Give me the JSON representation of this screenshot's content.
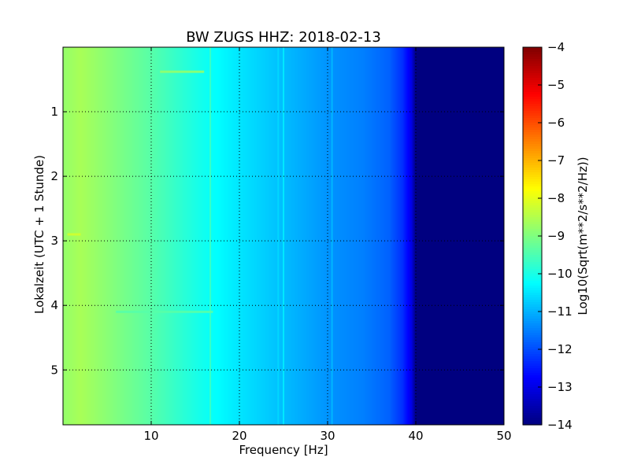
{
  "chart_data": {
    "type": "heatmap",
    "title": "BW ZUGS HHZ: 2018-02-13",
    "xlabel": "Frequency [Hz]",
    "ylabel": "Lokalzeit (UTC + 1 Stunde)",
    "xlim": [
      0,
      50
    ],
    "ylim": [
      5.85,
      0.0
    ],
    "x_ticks": [
      10,
      20,
      30,
      40,
      50
    ],
    "y_ticks": [
      1,
      2,
      3,
      4,
      5
    ],
    "grid": true,
    "colorscale": "jet",
    "colorbar": {
      "label": "Log10(Sqrt(m**2/s**2/Hz))",
      "range": [
        -14,
        -4
      ],
      "ticks": [
        -4,
        -5,
        -6,
        -7,
        -8,
        -9,
        -10,
        -11,
        -12,
        -13,
        -14
      ]
    },
    "profile_freq_hz": [
      0,
      2,
      5,
      10,
      15,
      20,
      25,
      30,
      34,
      37,
      38.5,
      39.5,
      40,
      50
    ],
    "profile_log10_amplitude": [
      -8.8,
      -8.6,
      -8.9,
      -9.4,
      -10.0,
      -10.5,
      -10.9,
      -11.3,
      -11.5,
      -11.8,
      -12.3,
      -13.0,
      -14.0,
      -14.0
    ],
    "features": [
      {
        "type": "vertical_line",
        "freq_hz": 25.0,
        "log10_amplitude": -10.4
      },
      {
        "type": "vertical_line",
        "freq_hz": 24.4,
        "log10_amplitude": -10.6
      },
      {
        "type": "vertical_line",
        "freq_hz": 16.7,
        "log10_amplitude": -9.6
      },
      {
        "type": "vertical_line",
        "freq_hz": 30.5,
        "log10_amplitude": -10.9
      },
      {
        "type": "horizontal_band",
        "time_h": 2.9,
        "freq_range_hz": [
          0.5,
          2.0
        ],
        "log10_amplitude": -8.2
      },
      {
        "type": "horizontal_band",
        "time_h": 0.38,
        "freq_range_hz": [
          11,
          16
        ],
        "log10_amplitude": -8.8
      },
      {
        "type": "horizontal_band",
        "time_h": 4.1,
        "freq_range_hz": [
          6,
          17
        ],
        "log10_amplitude": -9.4
      }
    ]
  }
}
